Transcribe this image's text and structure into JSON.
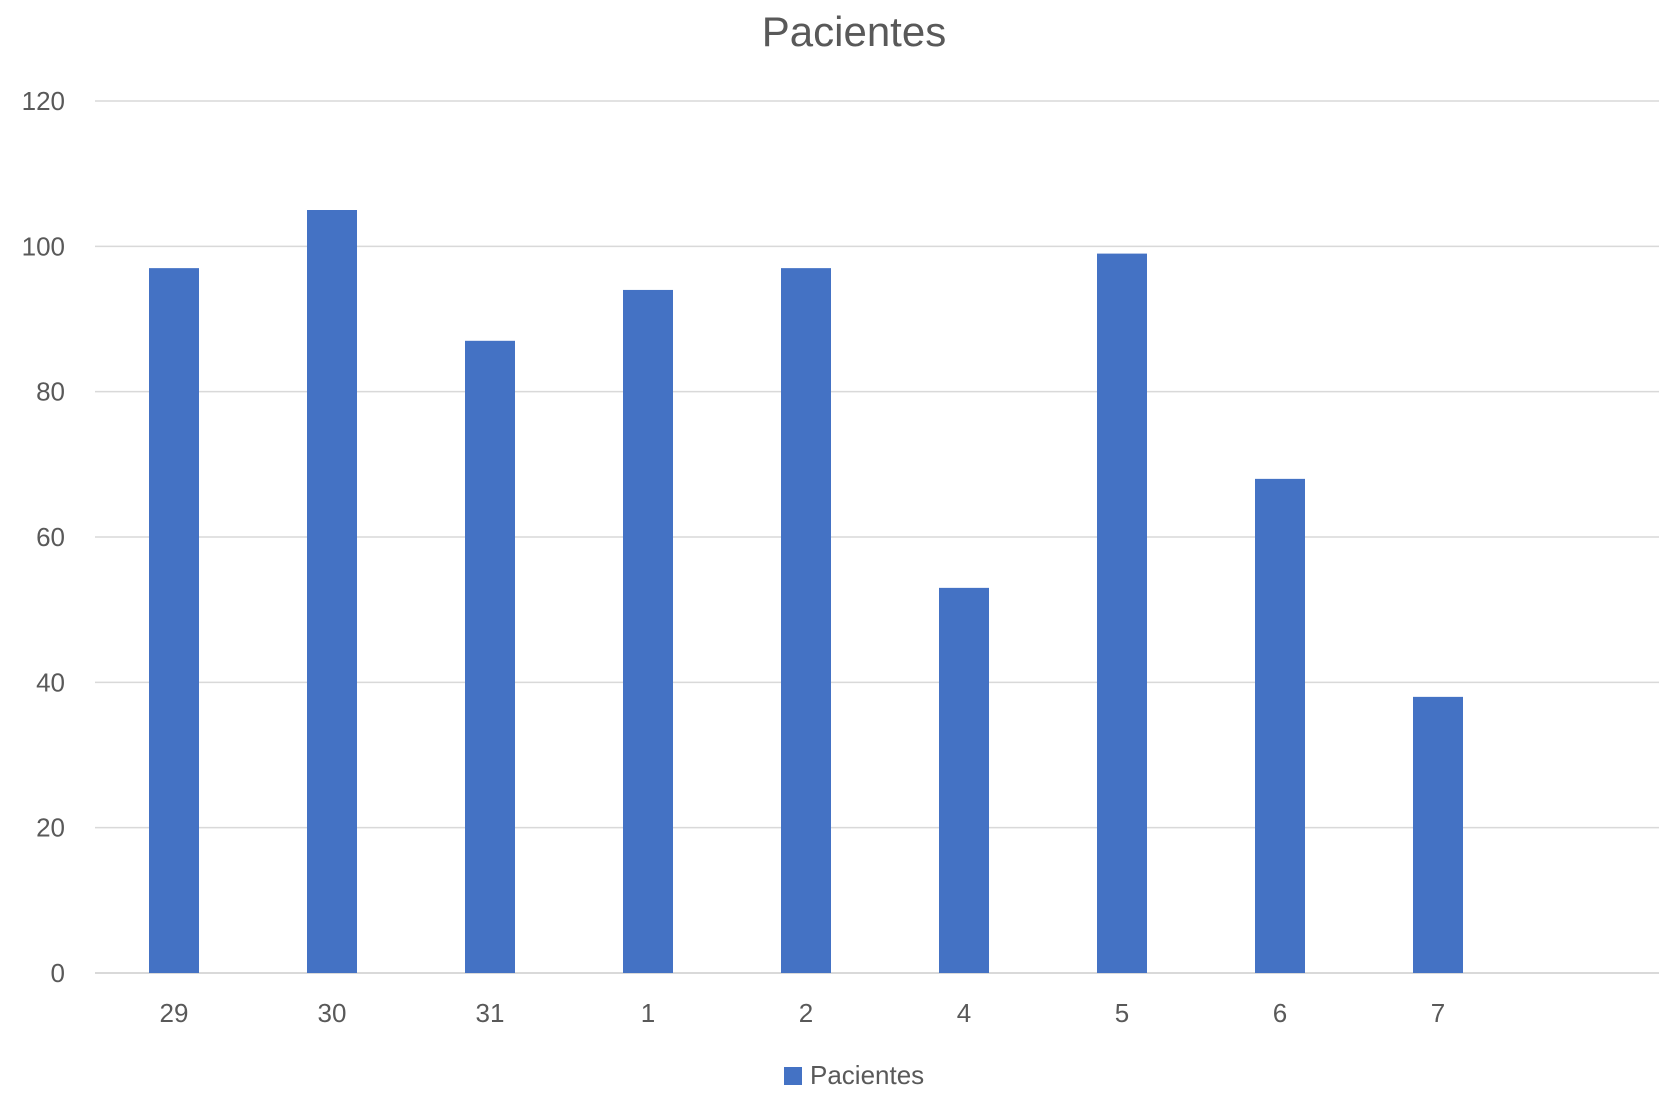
{
  "chart_data": {
    "type": "bar",
    "title": "Pacientes",
    "categories": [
      "29",
      "30",
      "31",
      "1",
      "2",
      "4",
      "5",
      "6",
      "7"
    ],
    "series": [
      {
        "name": "Pacientes",
        "values": [
          97,
          105,
          87,
          94,
          97,
          53,
          99,
          68,
          38
        ],
        "color": "#4472C4"
      }
    ],
    "ylim": [
      0,
      120
    ],
    "yticks": [
      0,
      20,
      40,
      60,
      80,
      100,
      120
    ],
    "xlabel": "",
    "ylabel": "",
    "grid": true,
    "legend_position": "bottom"
  }
}
